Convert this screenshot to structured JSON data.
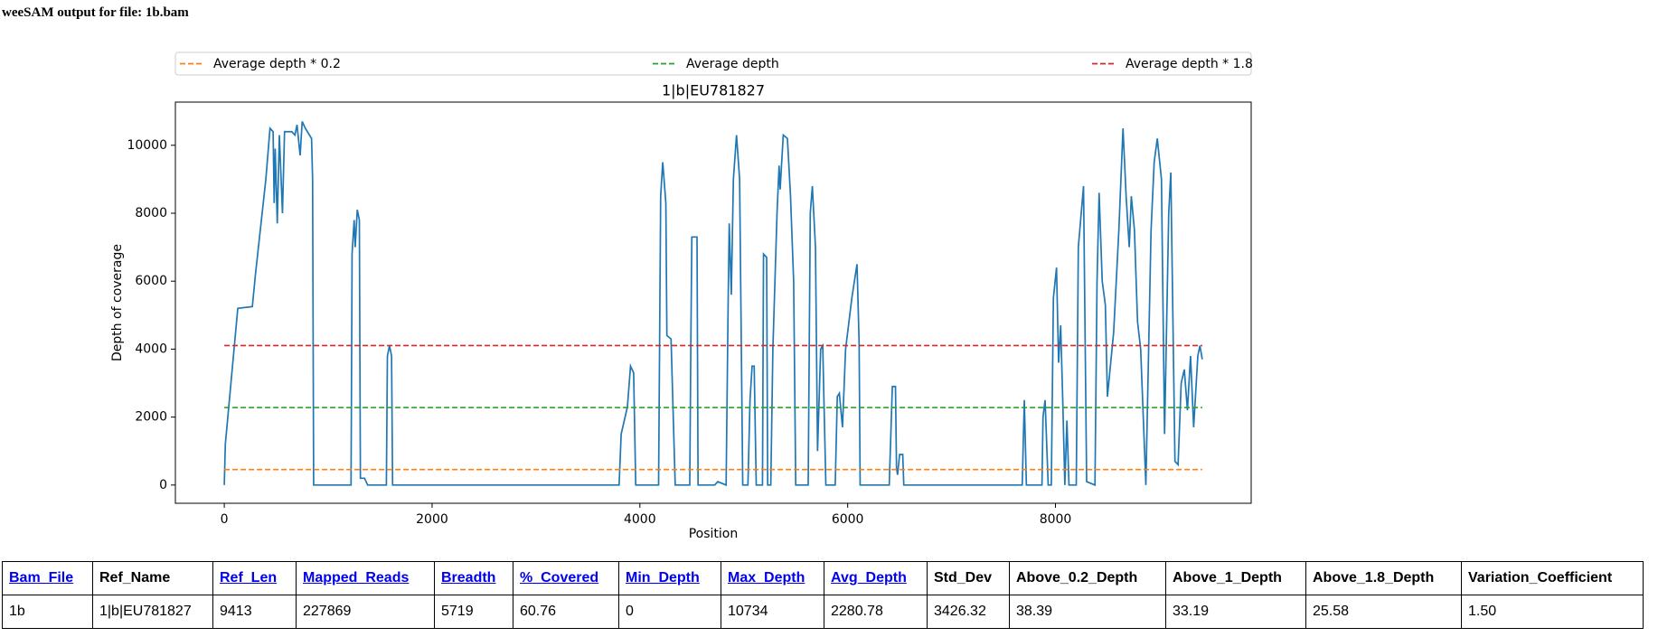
{
  "header": {
    "title": "weeSAM output for file: 1b.bam"
  },
  "chart_data": {
    "type": "line",
    "title": "1|b|EU781827",
    "xlabel": "Position",
    "ylabel": "Depth of coverage",
    "color": "#1f77b4",
    "x": [
      0,
      10,
      130,
      270,
      300,
      400,
      440,
      470,
      480,
      490,
      510,
      530,
      560,
      580,
      650,
      680,
      700,
      730,
      750,
      780,
      840,
      850,
      860,
      1220,
      1230,
      1250,
      1260,
      1280,
      1300,
      1310,
      1350,
      1380,
      1560,
      1570,
      1590,
      1610,
      1620,
      3800,
      3820,
      3880,
      3910,
      3940,
      3960,
      4180,
      4200,
      4220,
      4250,
      4260,
      4300,
      4340,
      4480,
      4490,
      4500,
      4550,
      4560,
      4720,
      4750,
      4830,
      4850,
      4860,
      4880,
      4900,
      4930,
      4960,
      4990,
      5040,
      5060,
      5080,
      5100,
      5120,
      5180,
      5190,
      5220,
      5230,
      5260,
      5280,
      5320,
      5340,
      5350,
      5380,
      5420,
      5450,
      5480,
      5500,
      5620,
      5640,
      5660,
      5690,
      5710,
      5740,
      5760,
      5770,
      5790,
      5880,
      5900,
      5920,
      5950,
      5980,
      6040,
      6090,
      6110,
      6120,
      6400,
      6430,
      6460,
      6470,
      6480,
      6500,
      6530,
      6540,
      7680,
      7700,
      7720,
      7870,
      7880,
      7900,
      7930,
      7960,
      7980,
      8010,
      8030,
      8050,
      8070,
      8090,
      8110,
      8130,
      8200,
      8220,
      8270,
      8300,
      8380,
      8400,
      8420,
      8450,
      8480,
      8500,
      8560,
      8610,
      8650,
      8680,
      8710,
      8730,
      8760,
      8790,
      8820,
      8870,
      8890,
      8920,
      8950,
      8980,
      9020,
      9050,
      9090,
      9110,
      9150,
      9180,
      9210,
      9240,
      9270,
      9300,
      9330,
      9370,
      9390,
      9413
    ],
    "values": [
      0,
      1200,
      5200,
      5250,
      6200,
      9000,
      10500,
      10400,
      8300,
      9900,
      7700,
      10300,
      8000,
      10400,
      10400,
      10300,
      10600,
      9700,
      10700,
      10500,
      10200,
      9000,
      0,
      0,
      6800,
      7800,
      7000,
      8100,
      7800,
      200,
      200,
      0,
      0,
      3800,
      4100,
      3800,
      0,
      0,
      1500,
      2300,
      3500,
      3300,
      0,
      0,
      8500,
      9500,
      8300,
      4400,
      4300,
      0,
      0,
      4000,
      7300,
      7300,
      0,
      0,
      100,
      0,
      5500,
      7700,
      5600,
      9000,
      10300,
      9000,
      0,
      0,
      2500,
      3500,
      3500,
      0,
      0,
      6800,
      6700,
      0,
      0,
      4000,
      8000,
      9400,
      8700,
      10300,
      10200,
      8500,
      6000,
      0,
      0,
      8000,
      8800,
      7000,
      1000,
      4000,
      4100,
      2700,
      0,
      0,
      2600,
      2700,
      1700,
      4000,
      5500,
      6500,
      4200,
      0,
      0,
      2900,
      2900,
      500,
      300,
      900,
      900,
      0,
      0,
      2500,
      0,
      0,
      2000,
      2500,
      0,
      0,
      5500,
      6400,
      3600,
      4700,
      2500,
      0,
      1900,
      0,
      0,
      7000,
      8800,
      100,
      0,
      6000,
      8600,
      6000,
      5300,
      2600,
      4500,
      7500,
      10500,
      8500,
      7000,
      8500,
      7500,
      4800,
      4000,
      0,
      3000,
      7500,
      9500,
      10200,
      9000,
      1500,
      8000,
      9200,
      700,
      600,
      3000,
      3400,
      2200,
      3800,
      1700,
      3800,
      4100,
      3700
    ],
    "reference_lines": [
      {
        "name": "Average depth * 0.2",
        "color": "#ff7f0e",
        "value": 456.156
      },
      {
        "name": "Average depth",
        "color": "#2ca02c",
        "value": 2280.78
      },
      {
        "name": "Average depth * 1.8",
        "color": "#d62728",
        "value": 4105.404
      }
    ],
    "xlim": [
      -470.65,
      9883.65
    ],
    "xticks": [
      0,
      2000,
      4000,
      6000,
      8000
    ],
    "ylim": [
      -536.7,
      11270.7
    ],
    "yticks": [
      0,
      2000,
      4000,
      6000,
      8000,
      10000
    ]
  },
  "table": {
    "header": [
      "Bam_File",
      "Ref_Name",
      "Ref_Len",
      "Mapped_Reads",
      "Breadth",
      "%_Covered",
      "Min_Depth",
      "Max_Depth",
      "Avg_Depth",
      "Std_Dev",
      "Above_0.2_Depth",
      "Above_1_Depth",
      "Above_1.8_Depth",
      "Variation_Coefficient"
    ],
    "header_links": [
      true,
      false,
      true,
      true,
      true,
      true,
      true,
      true,
      true,
      false,
      false,
      false,
      false,
      false
    ],
    "rows": [
      [
        "1b",
        "1|b|EU781827",
        "9413",
        "227869",
        "5719",
        "60.76",
        "0",
        "10734",
        "2280.78",
        "3426.32",
        "38.39",
        "33.19",
        "25.58",
        "1.50"
      ]
    ]
  }
}
